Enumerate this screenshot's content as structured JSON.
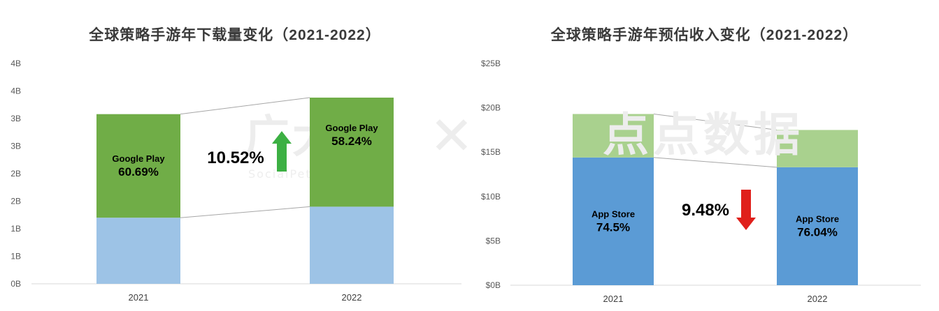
{
  "left": {
    "title": "全球策略手游年下载量变化（2021-2022）",
    "watermark": "广大大",
    "watermark_sub": "SocialPeta 中国站",
    "arrow_color": "#3cb043",
    "chart_data": {
      "type": "bar",
      "stacked": true,
      "categories": [
        "2021",
        "2022"
      ],
      "y_tick_labels": [
        "0B",
        "1B",
        "1B",
        "2B",
        "2B",
        "3B",
        "3B",
        "4B",
        "4B"
      ],
      "ylim": [
        0,
        4.0
      ],
      "grid": false,
      "series": [
        {
          "name": "",
          "color": "#9dc3e6",
          "values": [
            1.2,
            1.4
          ]
        },
        {
          "name": "Google Play",
          "color": "#70ad47",
          "values": [
            1.88,
            1.98
          ]
        }
      ],
      "segment_labels": [
        {
          "category": "2021",
          "line1": "Google Play",
          "line2": "60.69%"
        },
        {
          "category": "2022",
          "line1": "Google Play",
          "line2": "58.24%"
        }
      ],
      "change_label": "10.52%",
      "change_direction": "up"
    }
  },
  "right": {
    "title": "全球策略手游年预估收入变化（2021-2022）",
    "watermark": "点点数据",
    "arrow_color": "#e0201b",
    "chart_data": {
      "type": "bar",
      "stacked": true,
      "categories": [
        "2021",
        "2022"
      ],
      "y_tick_labels": [
        "$0B",
        "$5B",
        "$10B",
        "$15B",
        "$20B",
        "$25B"
      ],
      "ylim": [
        0,
        25
      ],
      "grid": false,
      "series": [
        {
          "name": "App Store",
          "color": "#5b9bd5",
          "values": [
            14.4,
            13.3
          ]
        },
        {
          "name": "",
          "color": "#a9d18e",
          "values": [
            4.9,
            4.2
          ]
        }
      ],
      "segment_labels": [
        {
          "category": "2021",
          "line1": "App Store",
          "line2": "74.5%"
        },
        {
          "category": "2022",
          "line1": "App Store",
          "line2": "76.04%"
        }
      ],
      "change_label": "9.48%",
      "change_direction": "down"
    }
  },
  "watermark_cross": "✕"
}
